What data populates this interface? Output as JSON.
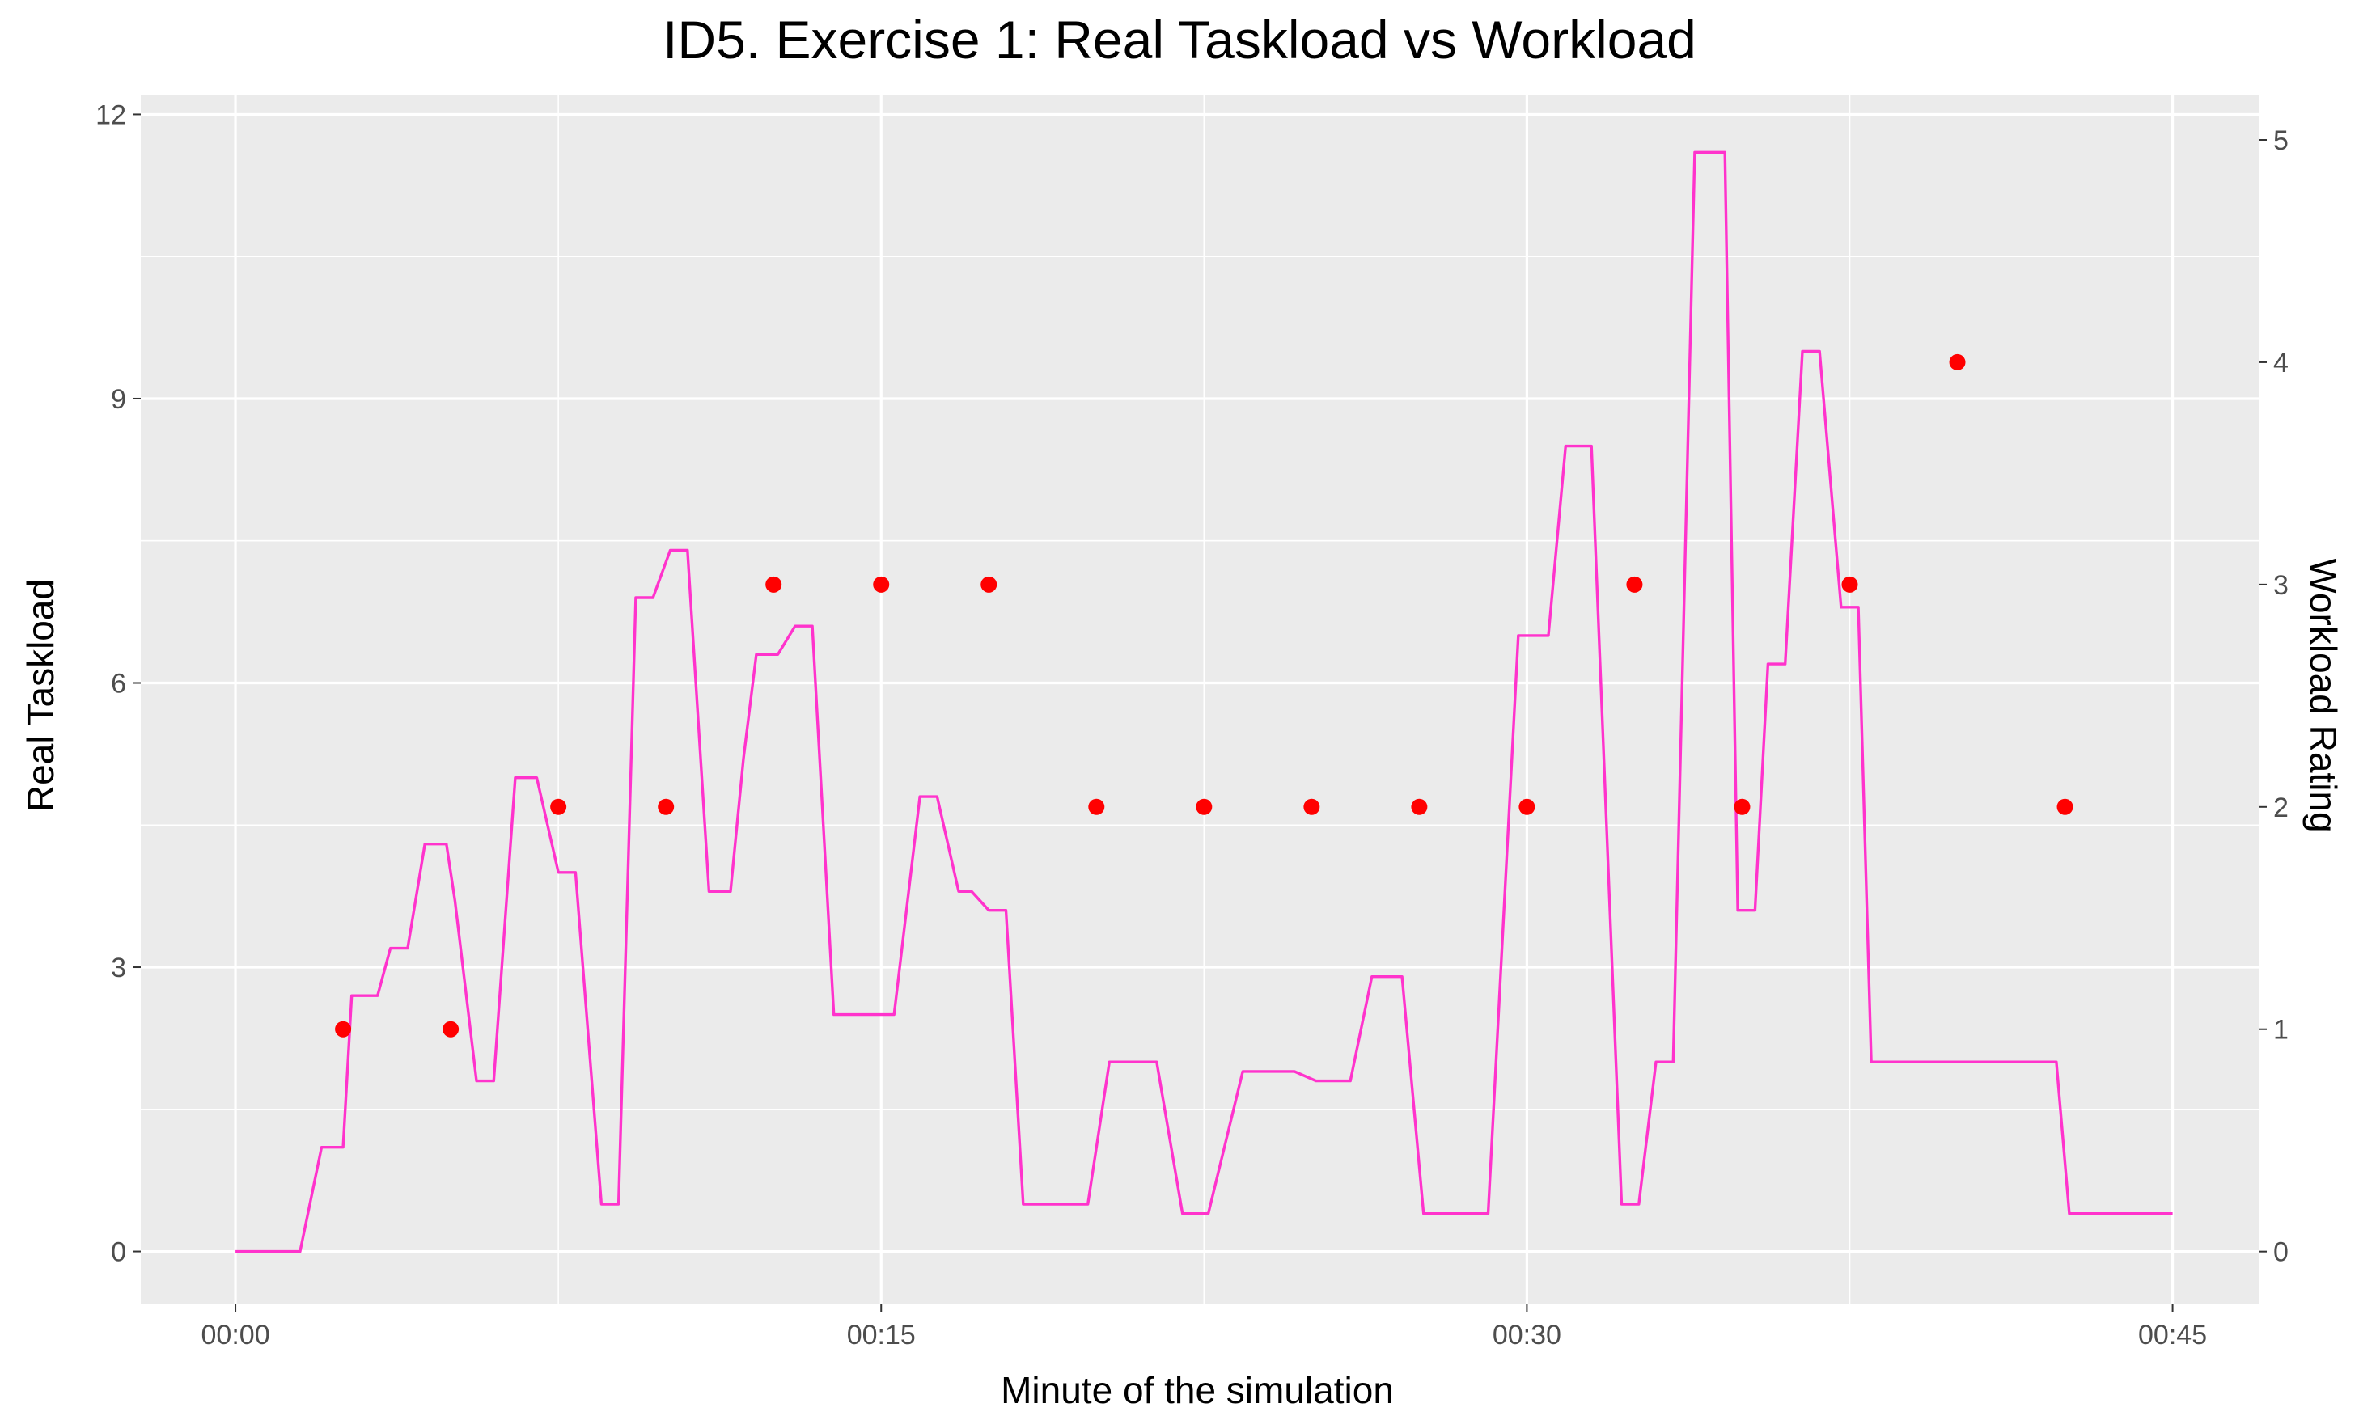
{
  "chart_data": {
    "type": "line",
    "title": "ID5. Exercise 1: Real Taskload vs Workload",
    "xlabel": "Minute of the simulation",
    "ylabel": "Real Taskload",
    "y2label": "Workload Rating",
    "xlim": [
      -2.2,
      47
    ],
    "ylim": [
      -0.55,
      12.2
    ],
    "y2lim": [
      -0.234,
      5.2
    ],
    "x_ticks": [
      0,
      15,
      30,
      45
    ],
    "x_tick_labels": [
      "00:00",
      "00:15",
      "00:30",
      "00:45"
    ],
    "y_ticks": [
      0,
      3,
      6,
      9,
      12
    ],
    "y_tick_labels": [
      "0",
      "3",
      "6",
      "9",
      "12"
    ],
    "y2_ticks": [
      0,
      1,
      2,
      3,
      4,
      5
    ],
    "y2_tick_labels": [
      "0",
      "1",
      "2",
      "3",
      "4",
      "5"
    ],
    "grid": true,
    "background": "#ebebeb",
    "series": [
      {
        "kind": "line",
        "axis": "left",
        "color": "#ff33cc",
        "x": [
          0,
          1.5,
          2.0,
          2.5,
          2.7,
          3.1,
          3.3,
          3.6,
          4.0,
          4.4,
          4.9,
          5.1,
          5.6,
          6.0,
          6.5,
          7.0,
          7.5,
          7.9,
          8.5,
          8.9,
          9.3,
          9.7,
          10.1,
          10.5,
          11.0,
          11.5,
          11.8,
          12.1,
          12.6,
          13.0,
          13.4,
          13.9,
          14.4,
          14.9,
          15.3,
          15.9,
          16.3,
          16.8,
          17.1,
          17.5,
          17.9,
          18.3,
          18.8,
          19.3,
          19.8,
          20.3,
          20.8,
          21.4,
          22.0,
          22.6,
          23.4,
          24.1,
          24.6,
          25.1,
          25.9,
          26.4,
          27.1,
          27.6,
          27.9,
          28.3,
          28.7,
          29.1,
          29.8,
          30.5,
          30.9,
          31.5,
          32.2,
          32.6,
          33.0,
          33.4,
          33.9,
          34.6,
          34.9,
          35.3,
          35.6,
          36.0,
          36.4,
          36.8,
          37.3,
          37.7,
          38.0,
          38.4,
          39.0,
          39.3,
          39.6,
          39.9,
          40.3,
          42.3,
          42.6,
          43.1,
          45.0
        ],
        "y": [
          0,
          0,
          1.1,
          1.1,
          2.7,
          2.7,
          2.7,
          3.2,
          3.2,
          4.3,
          4.3,
          3.7,
          1.8,
          1.8,
          5.0,
          5.0,
          4.0,
          4.0,
          0.5,
          0.5,
          6.9,
          6.9,
          7.4,
          7.4,
          3.8,
          3.8,
          5.2,
          6.3,
          6.3,
          6.6,
          6.6,
          2.5,
          2.5,
          2.5,
          2.5,
          4.8,
          4.8,
          3.8,
          3.8,
          3.6,
          3.6,
          0.5,
          0.5,
          0.5,
          0.5,
          2.0,
          2.0,
          2.0,
          0.4,
          0.4,
          1.9,
          1.9,
          1.9,
          1.8,
          1.8,
          2.9,
          2.9,
          0.4,
          0.4,
          0.4,
          0.4,
          0.4,
          6.5,
          6.5,
          8.5,
          8.5,
          0.5,
          0.5,
          2.0,
          2.0,
          11.6,
          11.6,
          3.6,
          3.6,
          6.2,
          6.2,
          9.5,
          9.5,
          6.8,
          6.8,
          2.0,
          2.0,
          2.0,
          2.0,
          2.0,
          2.0,
          2.0,
          2.0,
          0.4,
          0.4,
          0.4
        ]
      },
      {
        "kind": "points",
        "axis": "right",
        "color": "#ff0000",
        "x": [
          2.5,
          5.0,
          7.5,
          10.0,
          12.5,
          15.0,
          17.5,
          20.0,
          22.5,
          25.0,
          27.5,
          30.0,
          32.5,
          35.0,
          37.5,
          40.0,
          42.5
        ],
        "y": [
          1,
          1,
          2,
          2,
          3,
          3,
          3,
          2,
          2,
          2,
          2,
          2,
          3,
          2,
          3,
          4,
          2
        ]
      }
    ]
  }
}
